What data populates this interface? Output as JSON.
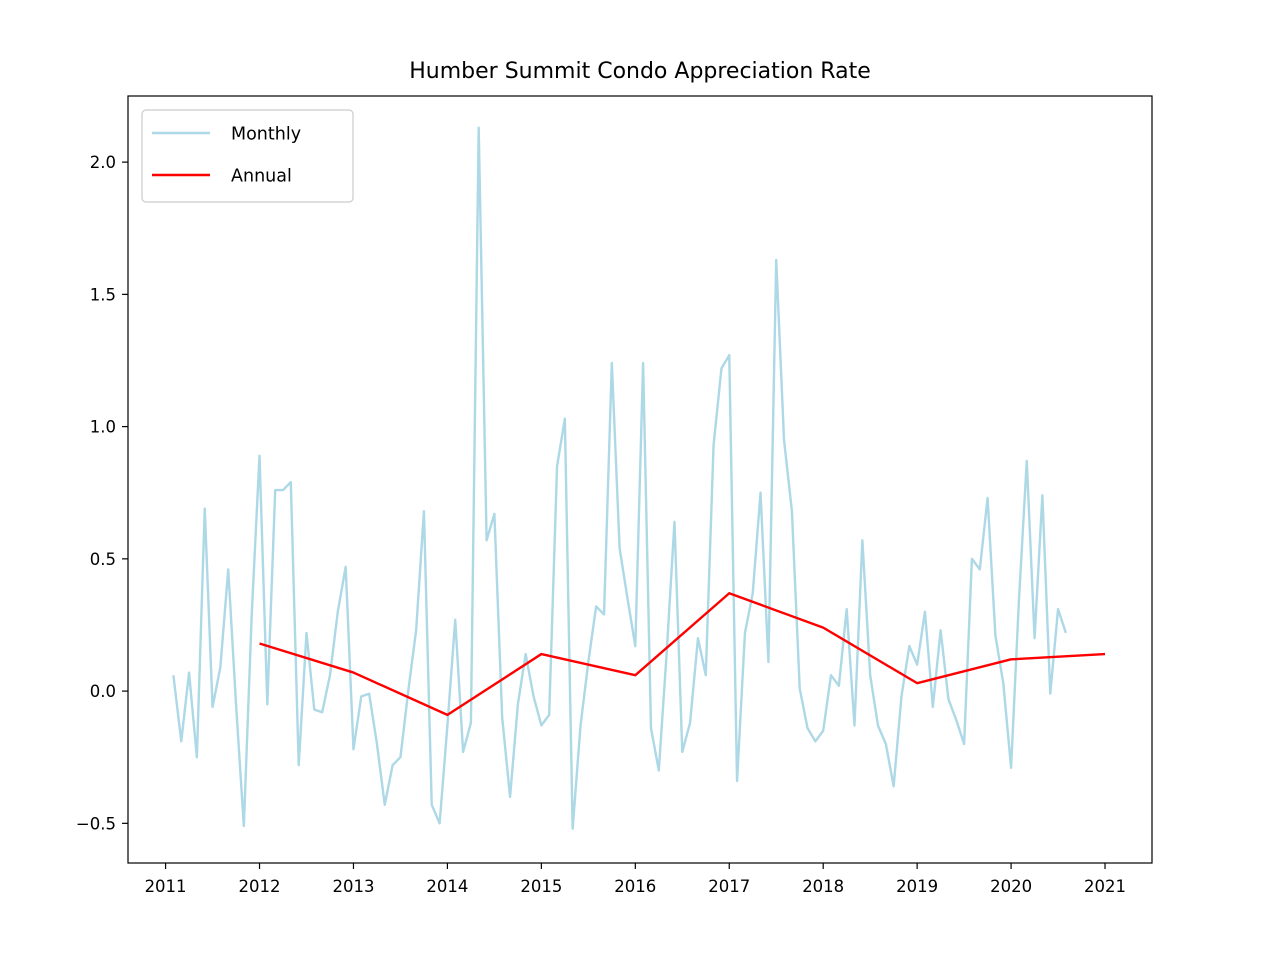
{
  "chart_data": {
    "type": "line",
    "title": "Humber Summit Condo Appreciation Rate",
    "xlabel": "",
    "ylabel": "",
    "xlim": [
      2010.6,
      2021.5
    ],
    "ylim": [
      -0.65,
      2.25
    ],
    "x_ticks": [
      2011,
      2012,
      2013,
      2014,
      2015,
      2016,
      2017,
      2018,
      2019,
      2020,
      2021
    ],
    "y_ticks": [
      -0.5,
      0.0,
      0.5,
      1.0,
      1.5,
      2.0
    ],
    "y_tick_labels": [
      "−0.5",
      "0.0",
      "0.5",
      "1.0",
      "1.5",
      "2.0"
    ],
    "legend_position": "top-left",
    "grid": false,
    "series": [
      {
        "name": "Monthly",
        "color": "#add8e6",
        "x": [
          2011.083,
          2011.167,
          2011.25,
          2011.333,
          2011.417,
          2011.5,
          2011.583,
          2011.667,
          2011.75,
          2011.833,
          2011.917,
          2012.0,
          2012.083,
          2012.167,
          2012.25,
          2012.333,
          2012.417,
          2012.5,
          2012.583,
          2012.667,
          2012.75,
          2012.833,
          2012.917,
          2013.0,
          2013.083,
          2013.167,
          2013.25,
          2013.333,
          2013.417,
          2013.5,
          2013.583,
          2013.667,
          2013.75,
          2013.833,
          2013.917,
          2014.0,
          2014.083,
          2014.167,
          2014.25,
          2014.333,
          2014.417,
          2014.5,
          2014.583,
          2014.667,
          2014.75,
          2014.833,
          2014.917,
          2015.0,
          2015.083,
          2015.167,
          2015.25,
          2015.333,
          2015.417,
          2015.5,
          2015.583,
          2015.667,
          2015.75,
          2015.833,
          2015.917,
          2016.0,
          2016.083,
          2016.167,
          2016.25,
          2016.333,
          2016.417,
          2016.5,
          2016.583,
          2016.667,
          2016.75,
          2016.833,
          2016.917,
          2017.0,
          2017.083,
          2017.167,
          2017.25,
          2017.333,
          2017.417,
          2017.5,
          2017.583,
          2017.667,
          2017.75,
          2017.833,
          2017.917,
          2018.0,
          2018.083,
          2018.167,
          2018.25,
          2018.333,
          2018.417,
          2018.5,
          2018.583,
          2018.667,
          2018.75,
          2018.833,
          2018.917,
          2019.0,
          2019.083,
          2019.167,
          2019.25,
          2019.333,
          2019.417,
          2019.5,
          2019.583,
          2019.667,
          2019.75,
          2019.833,
          2019.917,
          2020.0,
          2020.083,
          2020.167,
          2020.25,
          2020.333,
          2020.417,
          2020.5,
          2020.583
        ],
        "values": [
          0.06,
          -0.19,
          0.07,
          -0.25,
          0.69,
          -0.06,
          0.09,
          0.46,
          -0.05,
          -0.51,
          0.29,
          0.89,
          -0.05,
          0.76,
          0.76,
          0.79,
          -0.28,
          0.22,
          -0.07,
          -0.08,
          0.06,
          0.3,
          0.47,
          -0.22,
          -0.02,
          -0.01,
          -0.2,
          -0.43,
          -0.28,
          -0.25,
          0.0,
          0.23,
          0.68,
          -0.43,
          -0.5,
          -0.13,
          0.27,
          -0.23,
          -0.12,
          2.13,
          0.57,
          0.67,
          -0.1,
          -0.4,
          -0.05,
          0.14,
          -0.02,
          -0.13,
          -0.09,
          0.85,
          1.03,
          -0.52,
          -0.13,
          0.11,
          0.32,
          0.29,
          1.24,
          0.54,
          0.35,
          0.17,
          1.24,
          -0.14,
          -0.3,
          0.14,
          0.64,
          -0.23,
          -0.12,
          0.2,
          0.06,
          0.93,
          1.22,
          1.27,
          -0.34,
          0.22,
          0.37,
          0.75,
          0.11,
          1.63,
          0.95,
          0.68,
          0.01,
          -0.14,
          -0.19,
          -0.15,
          0.06,
          0.02,
          0.31,
          -0.13,
          0.57,
          0.06,
          -0.13,
          -0.2,
          -0.36,
          -0.02,
          0.17,
          0.1,
          0.3,
          -0.06,
          0.23,
          -0.03,
          -0.11,
          -0.2,
          0.5,
          0.46,
          0.73,
          0.21,
          0.03,
          -0.29,
          0.34,
          0.87,
          0.2,
          0.74,
          -0.01,
          0.31,
          0.22
        ]
      },
      {
        "name": "Annual",
        "color": "#ff0000",
        "x": [
          2012,
          2013,
          2014,
          2015,
          2016,
          2017,
          2018,
          2019,
          2020,
          2021
        ],
        "values": [
          0.18,
          0.07,
          -0.09,
          0.14,
          0.06,
          0.37,
          0.24,
          0.03,
          0.12,
          0.14
        ]
      }
    ]
  }
}
